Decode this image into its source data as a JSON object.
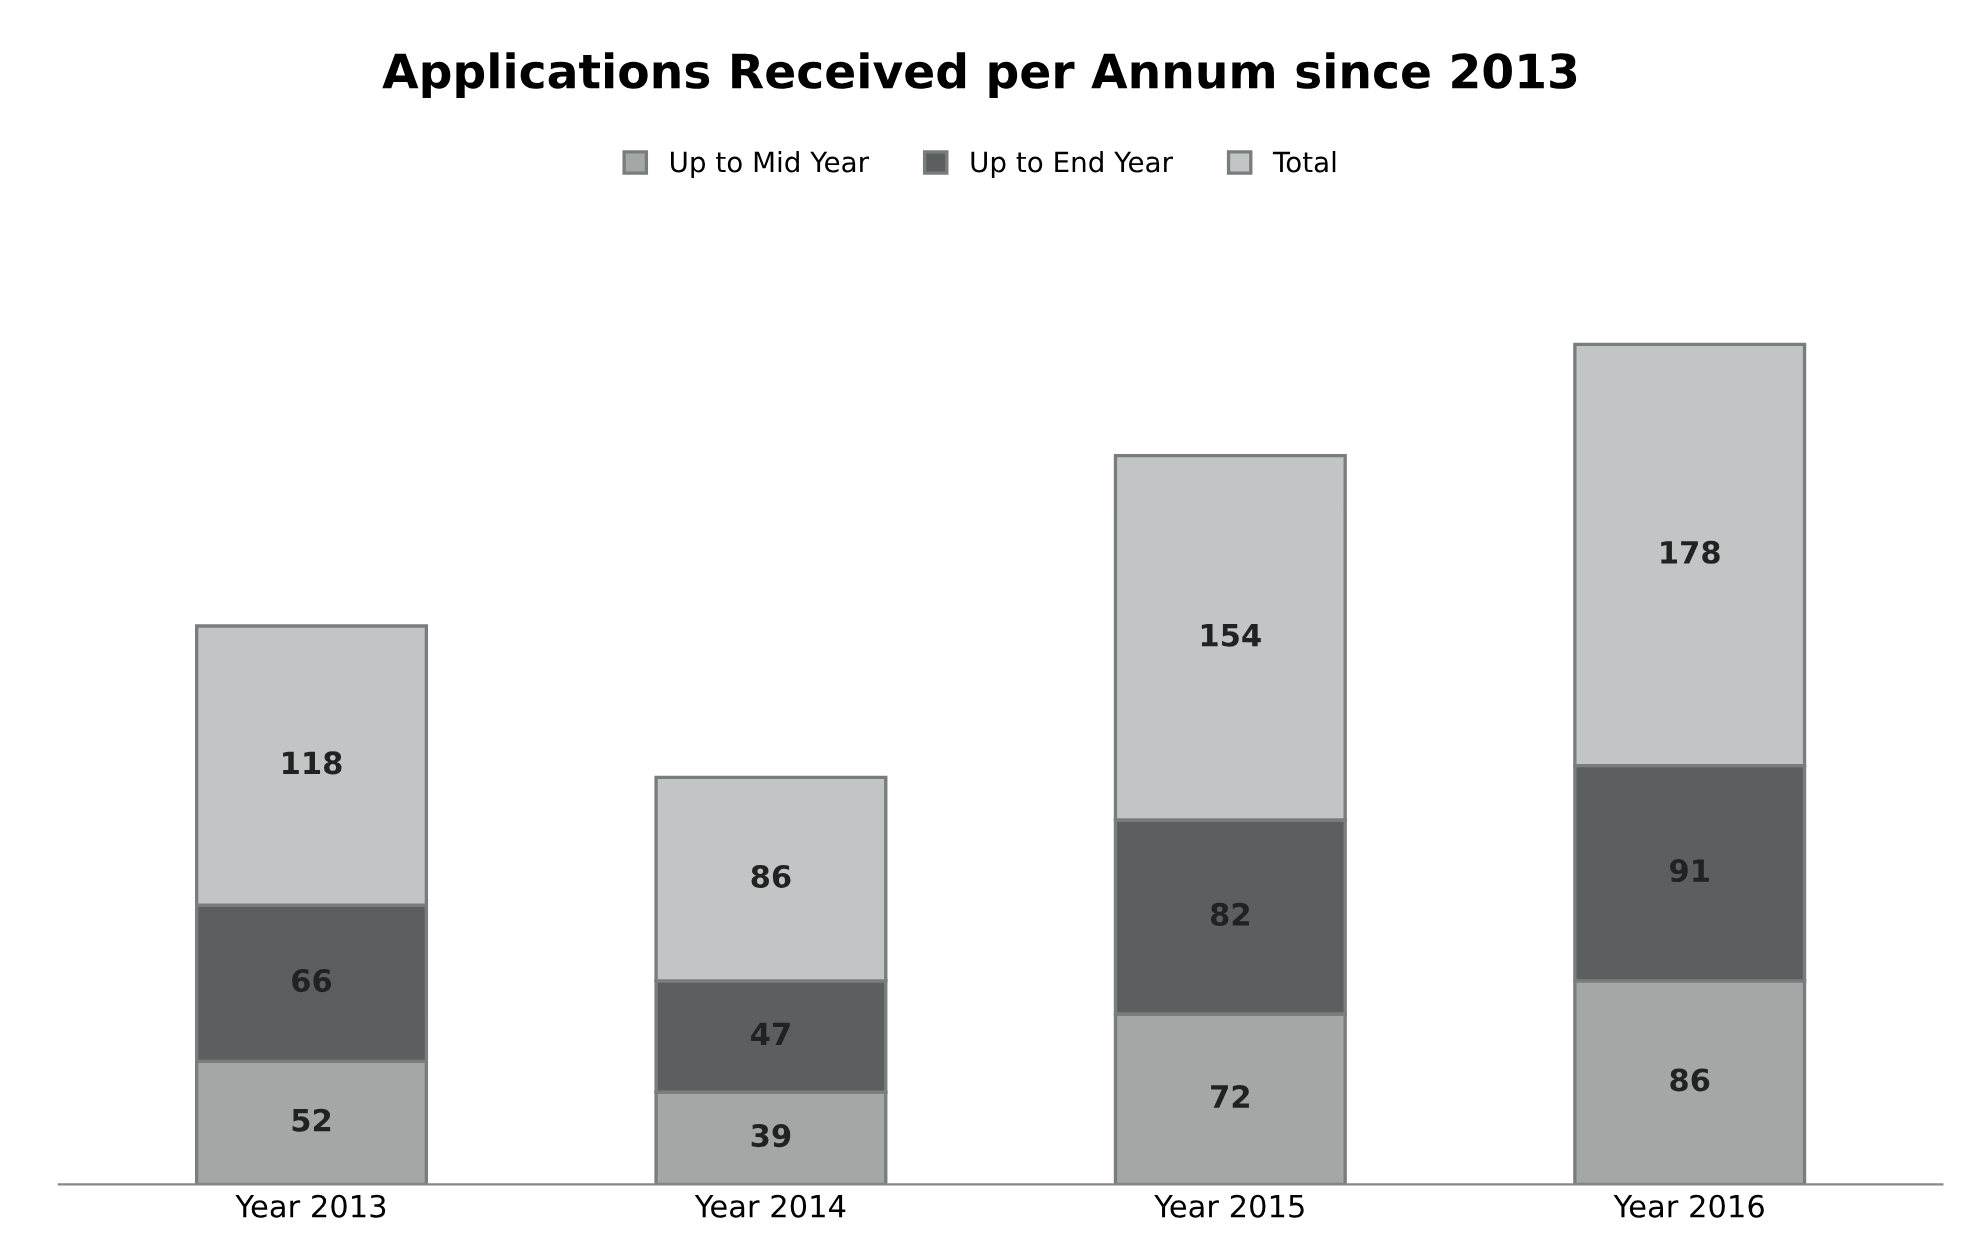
{
  "chart_data": {
    "type": "bar",
    "title": "Applications Received per Annum since 2013",
    "categories": [
      "Year 2013",
      "Year 2014",
      "Year 2015",
      "Year 2016"
    ],
    "stacked": true,
    "data_labels": true,
    "legend": "top",
    "grid": false,
    "series": [
      {
        "name": "Up to Mid Year",
        "color": "#a3a8a6",
        "values": [
          52,
          39,
          72,
          86
        ]
      },
      {
        "name": "Up to End Year",
        "color": "#5c5f60",
        "values": [
          66,
          47,
          82,
          91
        ]
      },
      {
        "name": "Total",
        "color": "#c2c5c5",
        "values": [
          118,
          86,
          154,
          178
        ]
      }
    ]
  }
}
